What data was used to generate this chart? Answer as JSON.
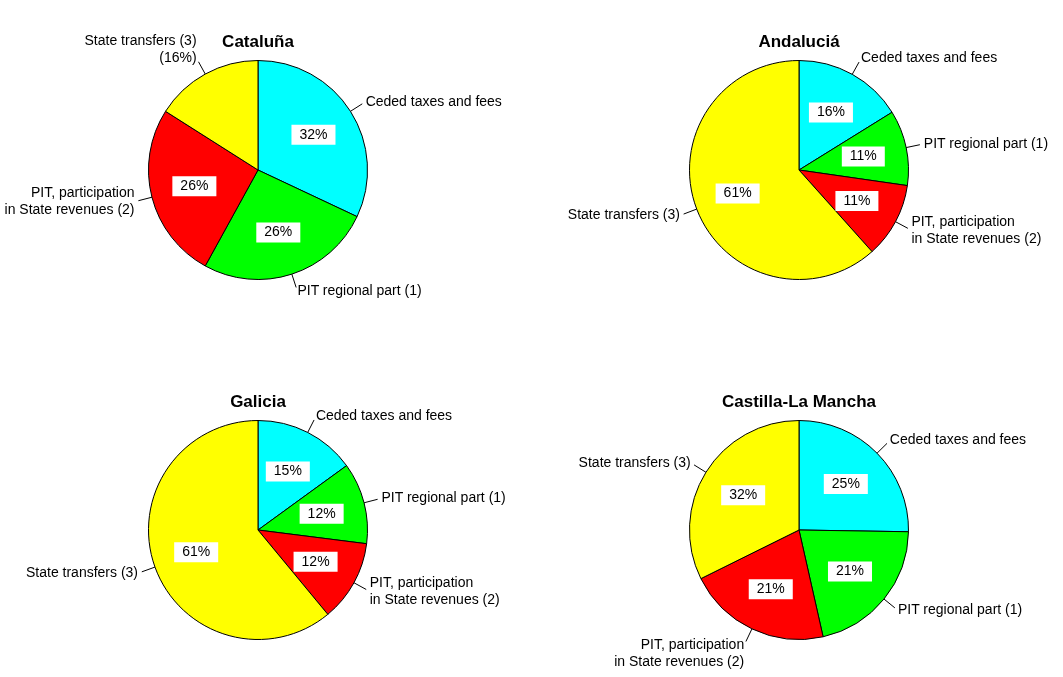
{
  "chart_data": [
    {
      "type": "pie",
      "title": "Cataluña",
      "categories": [
        "Ceded taxes and fees",
        "PIT regional part (1)",
        "PIT, participation\nin State revenues (2)",
        "State transfers (3)\n(16%)"
      ],
      "values": [
        32,
        26,
        26,
        16
      ],
      "colors": [
        "#00ffff",
        "#00ff00",
        "#ff0000",
        "#ffff00"
      ],
      "value_labels": [
        "32%",
        "26%",
        "26%",
        null
      ]
    },
    {
      "type": "pie",
      "title": "Andaluciá",
      "categories": [
        "Ceded taxes and fees",
        "PIT regional part (1)",
        "PIT, participation\nin State revenues (2)",
        "State transfers (3)"
      ],
      "values": [
        16,
        11,
        11,
        61
      ],
      "colors": [
        "#00ffff",
        "#00ff00",
        "#ff0000",
        "#ffff00"
      ],
      "value_labels": [
        "16%",
        "11%",
        "11%",
        "61%"
      ]
    },
    {
      "type": "pie",
      "title": "Galicia",
      "categories": [
        "Ceded taxes and fees",
        "PIT regional part (1)",
        "PIT, participation\nin State revenues (2)",
        "State transfers (3)"
      ],
      "values": [
        15,
        12,
        12,
        61
      ],
      "colors": [
        "#00ffff",
        "#00ff00",
        "#ff0000",
        "#ffff00"
      ],
      "value_labels": [
        "15%",
        "12%",
        "12%",
        "61%"
      ]
    },
    {
      "type": "pie",
      "title": "Castilla-La Mancha",
      "categories": [
        "Ceded taxes and fees",
        "PIT regional part (1)",
        "PIT, participation\nin State revenues (2)",
        "State transfers (3)"
      ],
      "values": [
        25,
        21,
        21,
        32
      ],
      "colors": [
        "#00ffff",
        "#00ff00",
        "#ff0000",
        "#ffff00"
      ],
      "value_labels": [
        "25%",
        "21%",
        "21%",
        "32%"
      ]
    }
  ]
}
